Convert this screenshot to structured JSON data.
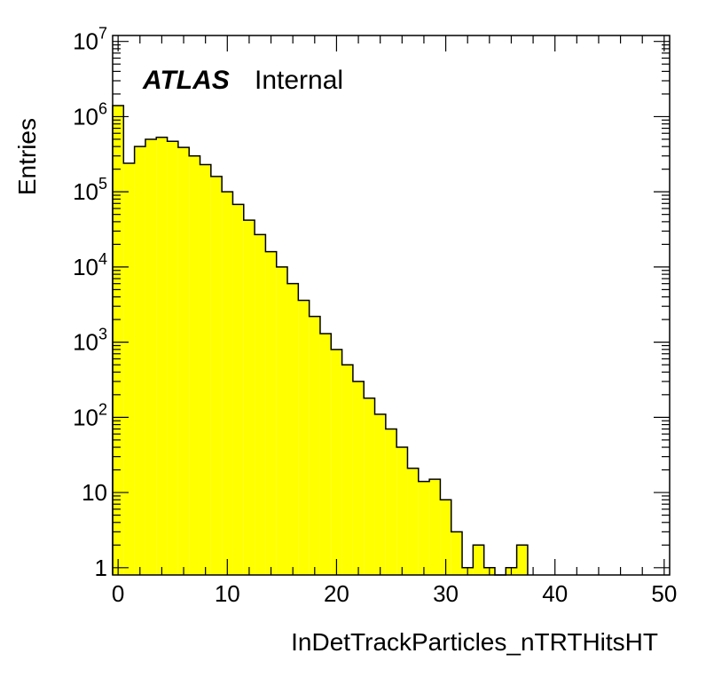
{
  "chart_data": {
    "type": "bar",
    "histogram": true,
    "xlabel": "InDetTrackParticles_nTRTHitsHT",
    "ylabel": "Entries",
    "log_y": true,
    "xlim": [
      -0.5,
      50.5
    ],
    "ylim": [
      0.8,
      12000000
    ],
    "bin_width": 1,
    "x_ticks": [
      0,
      10,
      20,
      30,
      40,
      50
    ],
    "y_ticks": [
      {
        "value": 1,
        "base": "1",
        "exp": ""
      },
      {
        "value": 10,
        "base": "10",
        "exp": ""
      },
      {
        "value": 100,
        "base": "10",
        "exp": "2"
      },
      {
        "value": 1000,
        "base": "10",
        "exp": "3"
      },
      {
        "value": 10000,
        "base": "10",
        "exp": "4"
      },
      {
        "value": 100000,
        "base": "10",
        "exp": "5"
      },
      {
        "value": 1000000,
        "base": "10",
        "exp": "6"
      },
      {
        "value": 10000000,
        "base": "10",
        "exp": "7"
      }
    ],
    "bins": [
      {
        "x": 0,
        "y": 1400000
      },
      {
        "x": 1,
        "y": 240000
      },
      {
        "x": 2,
        "y": 400000
      },
      {
        "x": 3,
        "y": 500000
      },
      {
        "x": 4,
        "y": 530000
      },
      {
        "x": 5,
        "y": 470000
      },
      {
        "x": 6,
        "y": 390000
      },
      {
        "x": 7,
        "y": 300000
      },
      {
        "x": 8,
        "y": 230000
      },
      {
        "x": 9,
        "y": 160000
      },
      {
        "x": 10,
        "y": 100000
      },
      {
        "x": 11,
        "y": 68000
      },
      {
        "x": 12,
        "y": 42000
      },
      {
        "x": 13,
        "y": 27000
      },
      {
        "x": 14,
        "y": 16000
      },
      {
        "x": 15,
        "y": 10000
      },
      {
        "x": 16,
        "y": 6000
      },
      {
        "x": 17,
        "y": 3600
      },
      {
        "x": 18,
        "y": 2200
      },
      {
        "x": 19,
        "y": 1300
      },
      {
        "x": 20,
        "y": 800
      },
      {
        "x": 21,
        "y": 500
      },
      {
        "x": 22,
        "y": 300
      },
      {
        "x": 23,
        "y": 180
      },
      {
        "x": 24,
        "y": 110
      },
      {
        "x": 25,
        "y": 70
      },
      {
        "x": 26,
        "y": 40
      },
      {
        "x": 27,
        "y": 21
      },
      {
        "x": 28,
        "y": 14
      },
      {
        "x": 29,
        "y": 15
      },
      {
        "x": 30,
        "y": 8
      },
      {
        "x": 31,
        "y": 3
      },
      {
        "x": 32,
        "y": 1
      },
      {
        "x": 33,
        "y": 2
      },
      {
        "x": 34,
        "y": 1
      },
      {
        "x": 35,
        "y": 0
      },
      {
        "x": 36,
        "y": 1
      },
      {
        "x": 37,
        "y": 2
      }
    ],
    "fill_color": "#ffff00",
    "line_color": "#000000",
    "grid": false
  },
  "atlas_label": {
    "experiment": "ATLAS",
    "status": "Internal"
  }
}
